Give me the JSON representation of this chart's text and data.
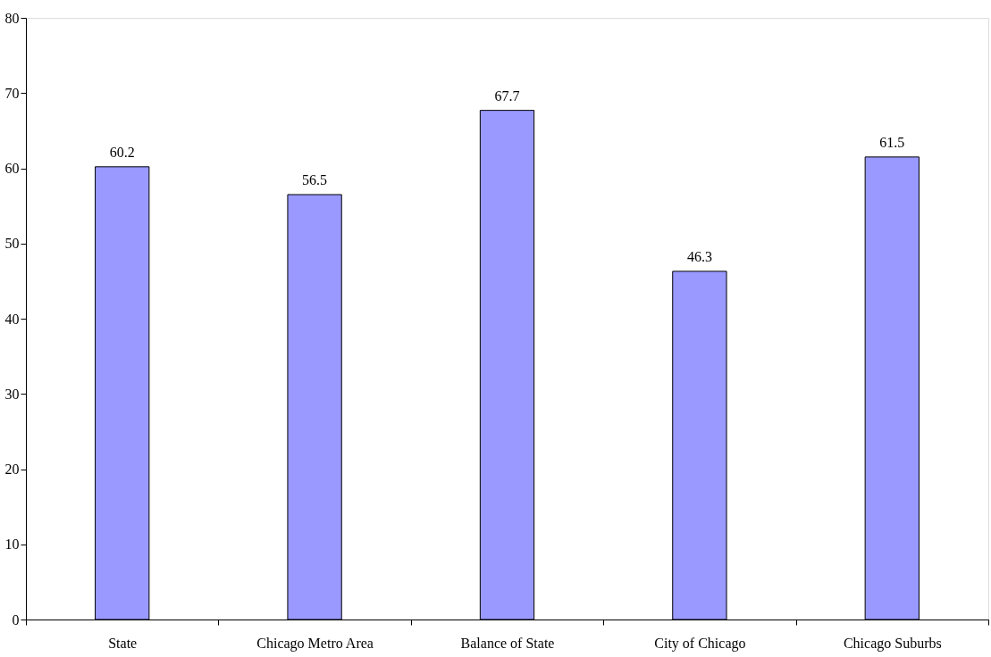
{
  "chart_data": {
    "type": "bar",
    "categories": [
      "State",
      "Chicago Metro Area",
      "Balance of State",
      "City of Chicago",
      "Chicago Suburbs"
    ],
    "values": [
      60.2,
      56.5,
      67.7,
      46.3,
      61.5
    ],
    "color": "#9999ff",
    "ylim": [
      0,
      80
    ],
    "yticks": [
      0,
      10,
      20,
      30,
      40,
      50,
      60,
      70,
      80
    ],
    "data_labels": true,
    "grid": false
  }
}
